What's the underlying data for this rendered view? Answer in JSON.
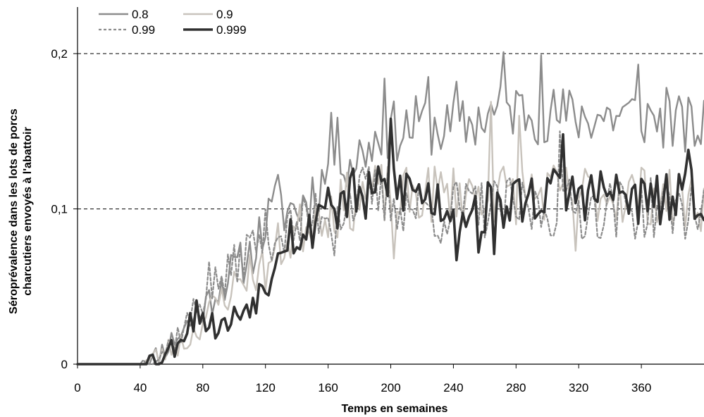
{
  "chart_data": {
    "type": "line",
    "title": "",
    "xlabel": "Temps en semaines",
    "ylabel_lines": [
      "Séroprévalence dans les lots de porcs",
      "charcutiers envoyés à l'abattoir"
    ],
    "xlim": [
      0,
      400
    ],
    "ylim": [
      0,
      0.23
    ],
    "x_ticks": [
      0,
      40,
      80,
      120,
      160,
      200,
      240,
      280,
      320,
      360
    ],
    "x_tick_labels": [
      "0",
      "40",
      "80",
      "120",
      "160",
      "200",
      "240",
      "280",
      "320",
      "360"
    ],
    "y_ticks": [
      0,
      0.1,
      0.2
    ],
    "y_tick_labels": [
      "0",
      "0,1",
      "0,2"
    ],
    "grid": "horizontal dashed at 0,1 and 0,2",
    "legend_position": "top-left",
    "series": [
      {
        "name": "0.8",
        "color": "#8c8c8c",
        "style": "solid",
        "anchors": [
          [
            0,
            0
          ],
          [
            38,
            0
          ],
          [
            42,
            0.003
          ],
          [
            48,
            0.003
          ],
          [
            55,
            0.01
          ],
          [
            60,
            0.015
          ],
          [
            70,
            0.025
          ],
          [
            80,
            0.035
          ],
          [
            90,
            0.05
          ],
          [
            100,
            0.06
          ],
          [
            110,
            0.07
          ],
          [
            120,
            0.09
          ],
          [
            128,
            0.1
          ],
          [
            135,
            0.1
          ],
          [
            140,
            0.1
          ],
          [
            150,
            0.11
          ],
          [
            158,
            0.12
          ],
          [
            165,
            0.14
          ],
          [
            175,
            0.13
          ],
          [
            185,
            0.14
          ],
          [
            195,
            0.15
          ],
          [
            205,
            0.15
          ],
          [
            220,
            0.155
          ],
          [
            240,
            0.15
          ],
          [
            260,
            0.16
          ],
          [
            280,
            0.165
          ],
          [
            300,
            0.16
          ],
          [
            320,
            0.16
          ],
          [
            340,
            0.16
          ],
          [
            360,
            0.16
          ],
          [
            380,
            0.155
          ],
          [
            400,
            0.15
          ]
        ],
        "noise_amp": 0.02,
        "spikes": [
          [
            129,
            0.122
          ],
          [
            163,
            0.162
          ],
          [
            197,
            0.184
          ],
          [
            225,
            0.185
          ],
          [
            243,
            0.182
          ],
          [
            273,
            0.201
          ],
          [
            296,
            0.199
          ],
          [
            358,
            0.193
          ],
          [
            376,
            0.178
          ]
        ],
        "seed": 11
      },
      {
        "name": "0.9",
        "color": "#c8c3bc",
        "style": "solid",
        "anchors": [
          [
            0,
            0
          ],
          [
            40,
            0
          ],
          [
            45,
            0.002
          ],
          [
            55,
            0.007
          ],
          [
            62,
            0.012
          ],
          [
            70,
            0.015
          ],
          [
            80,
            0.028
          ],
          [
            90,
            0.04
          ],
          [
            100,
            0.05
          ],
          [
            110,
            0.06
          ],
          [
            120,
            0.06
          ],
          [
            128,
            0.075
          ],
          [
            135,
            0.08
          ],
          [
            145,
            0.09
          ],
          [
            155,
            0.1
          ],
          [
            165,
            0.1
          ],
          [
            175,
            0.105
          ],
          [
            185,
            0.11
          ],
          [
            195,
            0.11
          ],
          [
            205,
            0.105
          ],
          [
            220,
            0.11
          ],
          [
            240,
            0.11
          ],
          [
            260,
            0.11
          ],
          [
            280,
            0.11
          ],
          [
            300,
            0.11
          ],
          [
            320,
            0.11
          ],
          [
            340,
            0.11
          ],
          [
            360,
            0.11
          ],
          [
            380,
            0.105
          ],
          [
            400,
            0.105
          ]
        ],
        "noise_amp": 0.02,
        "spikes": [
          [
            202,
            0.068
          ],
          [
            264,
            0.169
          ],
          [
            318,
            0.073
          ],
          [
            283,
            0.16
          ]
        ],
        "seed": 23
      },
      {
        "name": "0.99",
        "color": "#8c8c8c",
        "style": "dotted",
        "anchors": [
          [
            0,
            0
          ],
          [
            40,
            0
          ],
          [
            45,
            0.002
          ],
          [
            55,
            0.008
          ],
          [
            65,
            0.02
          ],
          [
            75,
            0.035
          ],
          [
            85,
            0.05
          ],
          [
            95,
            0.055
          ],
          [
            105,
            0.07
          ],
          [
            115,
            0.08
          ],
          [
            125,
            0.085
          ],
          [
            135,
            0.085
          ],
          [
            145,
            0.09
          ],
          [
            155,
            0.1
          ],
          [
            165,
            0.1
          ],
          [
            175,
            0.105
          ],
          [
            185,
            0.11
          ],
          [
            200,
            0.105
          ],
          [
            220,
            0.1
          ],
          [
            240,
            0.1
          ],
          [
            260,
            0.1
          ],
          [
            280,
            0.1
          ],
          [
            300,
            0.1
          ],
          [
            320,
            0.1
          ],
          [
            340,
            0.1
          ],
          [
            360,
            0.1
          ],
          [
            380,
            0.1
          ],
          [
            400,
            0.1
          ]
        ],
        "noise_amp": 0.02,
        "spikes": [
          [
            84,
            0.066
          ],
          [
            165,
            0.07
          ],
          [
            232,
            0.078
          ],
          [
            309,
            0.15
          ]
        ],
        "seed": 37
      },
      {
        "name": "0.999",
        "color": "#303030",
        "style": "solid-bold",
        "anchors": [
          [
            0,
            0
          ],
          [
            40,
            0
          ],
          [
            44,
            0.004
          ],
          [
            50,
            0.003
          ],
          [
            55,
            0.006
          ],
          [
            62,
            0.012
          ],
          [
            70,
            0.025
          ],
          [
            78,
            0.032
          ],
          [
            85,
            0.025
          ],
          [
            95,
            0.025
          ],
          [
            105,
            0.035
          ],
          [
            115,
            0.045
          ],
          [
            120,
            0.05
          ],
          [
            125,
            0.065
          ],
          [
            130,
            0.085
          ],
          [
            138,
            0.085
          ],
          [
            145,
            0.075
          ],
          [
            150,
            0.09
          ],
          [
            158,
            0.11
          ],
          [
            165,
            0.1
          ],
          [
            175,
            0.11
          ],
          [
            185,
            0.105
          ],
          [
            195,
            0.115
          ],
          [
            205,
            0.115
          ],
          [
            220,
            0.11
          ],
          [
            240,
            0.1
          ],
          [
            260,
            0.1
          ],
          [
            280,
            0.105
          ],
          [
            300,
            0.11
          ],
          [
            320,
            0.11
          ],
          [
            340,
            0.11
          ],
          [
            360,
            0.105
          ],
          [
            380,
            0.105
          ],
          [
            400,
            0.11
          ]
        ],
        "noise_amp": 0.018,
        "spikes": [
          [
            76,
            0.041
          ],
          [
            201,
            0.158
          ],
          [
            243,
            0.067
          ],
          [
            256,
            0.072
          ],
          [
            267,
            0.071
          ],
          [
            310,
            0.148
          ],
          [
            391,
            0.138
          ]
        ],
        "seed": 53
      }
    ]
  }
}
